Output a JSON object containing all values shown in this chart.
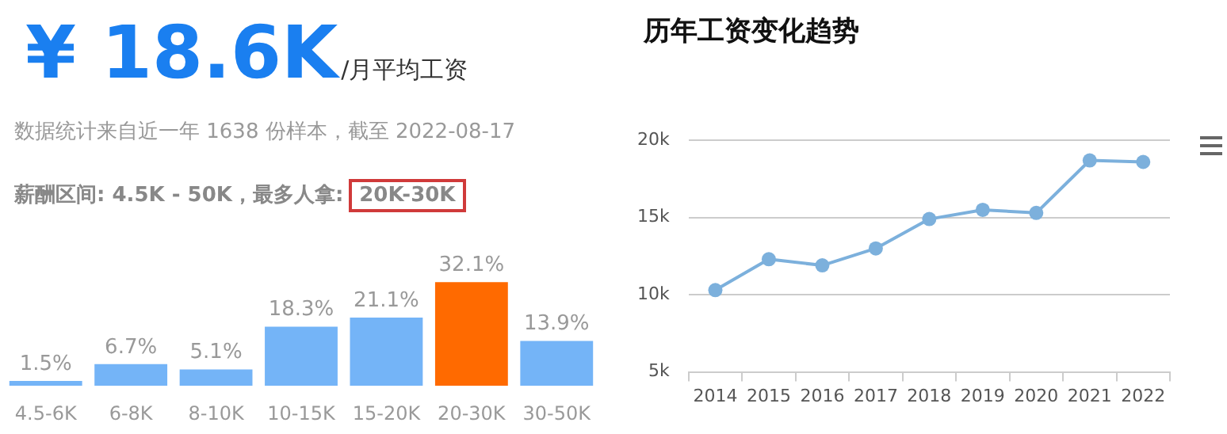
{
  "chart_data": [
    {
      "type": "other",
      "title": "¥ 18.6K",
      "subtitle": "/月平均工资",
      "annotations": [
        "数据统计来自近一年 1638 份样本，截至 2022-08-17",
        "薪酬区间: 4.5K - 50K，最多人拿:",
        "20K-30K"
      ]
    },
    {
      "type": "bar",
      "categories": [
        "4.5-6K",
        "6-8K",
        "8-10K",
        "10-15K",
        "15-20K",
        "20-30K",
        "30-50K"
      ],
      "values": [
        1.5,
        6.7,
        5.1,
        18.3,
        21.1,
        32.1,
        13.9
      ],
      "value_labels": [
        "1.5%",
        "6.7%",
        "5.1%",
        "18.3%",
        "21.1%",
        "32.1%",
        "13.9%"
      ],
      "colors": [
        "#74b4f7",
        "#74b4f7",
        "#74b4f7",
        "#74b4f7",
        "#74b4f7",
        "#ff6a00",
        "#74b4f7"
      ],
      "tick_labels": "x",
      "grid": false,
      "legend": false
    },
    {
      "type": "line",
      "title": "历年工资变化趋势",
      "categories": [
        "2014",
        "2015",
        "2016",
        "2017",
        "2018",
        "2019",
        "2020",
        "2021",
        "2022"
      ],
      "values": [
        10300,
        12300,
        11900,
        13000,
        14900,
        15500,
        15300,
        18700,
        18600
      ],
      "color": "#7cb0dc",
      "marker": "circle",
      "ylim": [
        5000,
        20000
      ],
      "yticks": [
        {
          "value": 5000,
          "label": "5k"
        },
        {
          "value": 10000,
          "label": "10k"
        },
        {
          "value": 15000,
          "label": "15k"
        },
        {
          "value": 20000,
          "label": "20k"
        }
      ],
      "grid": "y",
      "legend": false
    }
  ]
}
